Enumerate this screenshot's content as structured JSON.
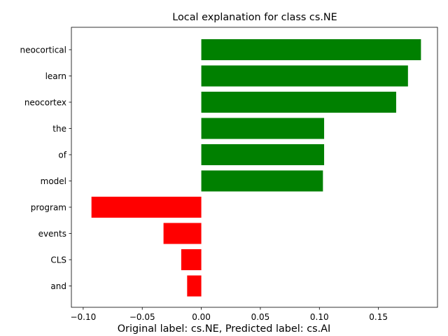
{
  "chart_data": {
    "type": "bar",
    "orientation": "horizontal",
    "title": "Local explanation for class cs.NE",
    "caption": "Original label: cs.NE, Predicted label: cs.AI",
    "categories": [
      "neocortical",
      "learn",
      "neocortex",
      "the",
      "of",
      "model",
      "program",
      "events",
      "CLS",
      "and"
    ],
    "values": [
      0.186,
      0.175,
      0.165,
      0.104,
      0.104,
      0.103,
      -0.093,
      -0.032,
      -0.017,
      -0.012
    ],
    "xlim": [
      -0.11,
      0.2
    ],
    "xticks": [
      -0.1,
      -0.05,
      0.0,
      0.05,
      0.1,
      0.15
    ],
    "xtick_labels": [
      "−0.10",
      "−0.05",
      "0.00",
      "0.05",
      "0.10",
      "0.15"
    ],
    "positive_color": "#008000",
    "negative_color": "#ff0000",
    "grid": false,
    "legend": "none"
  }
}
